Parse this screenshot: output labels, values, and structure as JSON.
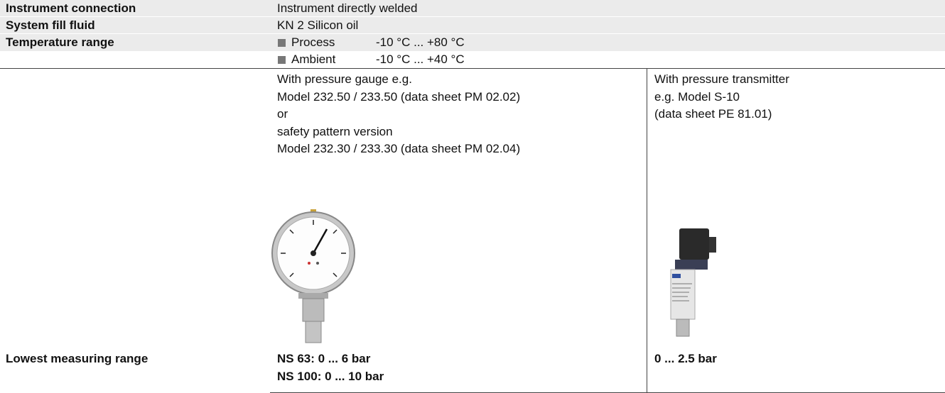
{
  "specs": [
    {
      "label": "Instrument connection",
      "value": "Instrument directly welded"
    },
    {
      "label": "System fill fluid",
      "value": "KN 2 Silicon oil"
    }
  ],
  "temperature": {
    "label": "Temperature range",
    "items": [
      {
        "name": "Process",
        "range": "-10 °C ... +80 °C"
      },
      {
        "name": "Ambient",
        "range": "-10 °C ... +40 °C"
      }
    ]
  },
  "variants": [
    {
      "description": [
        "With pressure gauge e.g.",
        "Model 232.50 / 233.50 (data sheet PM 02.02)",
        "or",
        "safety pattern version",
        "Model 232.30 / 233.30 (data sheet PM 02.04)"
      ],
      "lowest_range": [
        "NS 63: 0 ... 6 bar",
        "NS 100: 0 ... 10 bar"
      ]
    },
    {
      "description": [
        "With pressure transmitter",
        "e.g. Model S-10",
        "(data sheet PE 81.01)"
      ],
      "lowest_range": [
        "0 ... 2.5 bar"
      ]
    }
  ],
  "lowest_label": "Lowest measuring range"
}
